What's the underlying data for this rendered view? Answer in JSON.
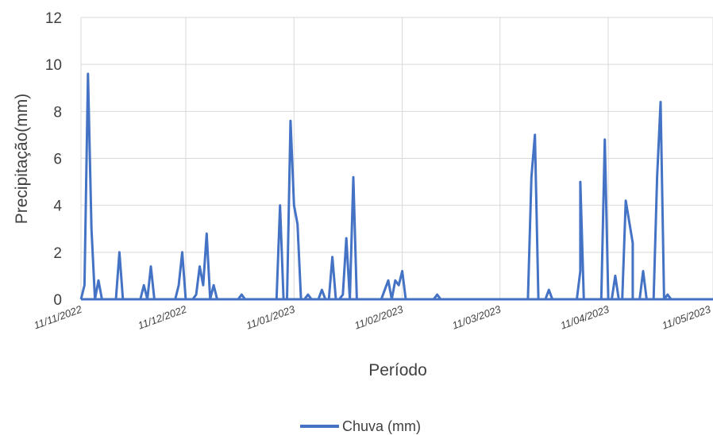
{
  "chart_data": {
    "type": "line",
    "xlabel": "Período",
    "ylabel": "Precipitação(mm)",
    "ylim": [
      0,
      12
    ],
    "yticks": [
      "0",
      "2",
      "4",
      "6",
      "8",
      "10",
      "12"
    ],
    "xticks": [
      {
        "label": "11/11/2022",
        "date": "2022-11-11"
      },
      {
        "label": "11/12/2022",
        "date": "2022-12-11"
      },
      {
        "label": "11/01/2023",
        "date": "2023-01-11"
      },
      {
        "label": "11/02/2023",
        "date": "2023-02-11"
      },
      {
        "label": "11/03/2023",
        "date": "2023-03-11"
      },
      {
        "label": "11/04/2023",
        "date": "2023-04-11"
      },
      {
        "label": "11/05/2023",
        "date": "2023-05-11"
      }
    ],
    "xlim": [
      "2022-11-11",
      "2023-05-11"
    ],
    "grid": true,
    "legend_position": "bottom",
    "series": [
      {
        "name": "Chuva (mm)",
        "color": "#4472c4",
        "points": [
          [
            "2022-11-11",
            0
          ],
          [
            "2022-11-12",
            0.6
          ],
          [
            "2022-11-13",
            9.6
          ],
          [
            "2022-11-14",
            3.0
          ],
          [
            "2022-11-15",
            0
          ],
          [
            "2022-11-16",
            0.8
          ],
          [
            "2022-11-17",
            0
          ],
          [
            "2022-11-17",
            0
          ],
          [
            "2022-11-18",
            0
          ],
          [
            "2022-11-19",
            0
          ],
          [
            "2022-11-20",
            0
          ],
          [
            "2022-11-21",
            0
          ],
          [
            "2022-11-17",
            0
          ],
          [
            "2022-11-18",
            0
          ],
          [
            "2022-11-17",
            0
          ],
          [
            "2022-11-20",
            0
          ],
          [
            "2022-11-21",
            0
          ],
          [
            "2022-11-17",
            0
          ],
          [
            "2022-11-18",
            0
          ],
          [
            "2022-11-20",
            0
          ],
          [
            "2022-11-21",
            0
          ],
          [
            "2022-11-17",
            0
          ],
          [
            "2022-11-20",
            0
          ],
          [
            "2022-11-21",
            0
          ],
          [
            "2022-11-17",
            0
          ],
          [
            "2022-11-21",
            0
          ],
          [
            "2022-11-22",
            0
          ],
          [
            "2022-11-17",
            0
          ],
          [
            "2022-11-17",
            0
          ],
          [
            "2022-11-18",
            0
          ],
          [
            "2022-11-19",
            0
          ],
          [
            "2022-11-20",
            0
          ],
          [
            "2022-11-21",
            0
          ],
          [
            "2022-11-22",
            0
          ],
          [
            "2022-11-17",
            0
          ],
          [
            "2022-11-18",
            0
          ],
          [
            "2022-11-19",
            0
          ],
          [
            "2022-11-20",
            0
          ],
          [
            "2022-11-21",
            0
          ],
          [
            "2022-11-22",
            2.0
          ],
          [
            "2022-11-23",
            0
          ],
          [
            "2022-11-28",
            0
          ],
          [
            "2022-11-29",
            0.6
          ],
          [
            "2022-11-30",
            0
          ],
          [
            "2022-12-01",
            1.4
          ],
          [
            "2022-12-02",
            0
          ],
          [
            "2022-12-08",
            0
          ],
          [
            "2022-12-09",
            0.6
          ],
          [
            "2022-12-10",
            2.0
          ],
          [
            "2022-12-11",
            0
          ],
          [
            "2022-12-13",
            0
          ],
          [
            "2022-12-14",
            0.2
          ],
          [
            "2022-12-15",
            1.4
          ],
          [
            "2022-12-16",
            0.6
          ],
          [
            "2022-12-17",
            2.8
          ],
          [
            "2022-12-18",
            0
          ],
          [
            "2022-12-19",
            0.6
          ],
          [
            "2022-12-20",
            0
          ],
          [
            "2022-12-26",
            0
          ],
          [
            "2022-12-27",
            0.2
          ],
          [
            "2022-12-28",
            0
          ],
          [
            "2023-01-06",
            0
          ],
          [
            "2023-01-07",
            4.0
          ],
          [
            "2023-01-08",
            0
          ],
          [
            "2023-01-09",
            0
          ],
          [
            "2023-01-10",
            7.6
          ],
          [
            "2023-01-11",
            4.0
          ],
          [
            "2023-01-12",
            3.2
          ],
          [
            "2023-01-13",
            0
          ],
          [
            "2023-01-14",
            0
          ],
          [
            "2023-01-15",
            0.2
          ],
          [
            "2023-01-16",
            0
          ],
          [
            "2023-01-18",
            0
          ],
          [
            "2023-01-19",
            0.4
          ],
          [
            "2023-01-20",
            0
          ],
          [
            "2023-01-21",
            0
          ],
          [
            "2023-01-22",
            1.8
          ],
          [
            "2023-01-23",
            0
          ],
          [
            "2023-01-24",
            0
          ],
          [
            "2023-01-25",
            0.2
          ],
          [
            "2023-01-26",
            2.6
          ],
          [
            "2023-01-27",
            0
          ],
          [
            "2023-01-28",
            5.2
          ],
          [
            "2023-01-29",
            0
          ],
          [
            "2023-02-05",
            0
          ],
          [
            "2023-02-06",
            0.4
          ],
          [
            "2023-02-07",
            0.8
          ],
          [
            "2023-02-08",
            0
          ],
          [
            "2023-02-09",
            0.8
          ],
          [
            "2023-02-10",
            0.6
          ],
          [
            "2023-02-11",
            1.2
          ],
          [
            "2023-02-12",
            0
          ],
          [
            "2023-02-20",
            0
          ],
          [
            "2023-02-21",
            0.2
          ],
          [
            "2023-02-22",
            0
          ],
          [
            "2023-03-19",
            0
          ],
          [
            "2023-03-20",
            5.2
          ],
          [
            "2023-03-21",
            7.0
          ],
          [
            "2023-03-22",
            0
          ],
          [
            "2023-03-24",
            0
          ],
          [
            "2023-03-25",
            0.4
          ],
          [
            "2023-03-26",
            0
          ],
          [
            "2023-04-02",
            0
          ],
          [
            "2023-04-03",
            1.2
          ],
          [
            "2023-04-03",
            5.0
          ],
          [
            "2023-04-04",
            0
          ],
          [
            "2023-04-09",
            0
          ],
          [
            "2023-04-10",
            6.8
          ],
          [
            "2023-04-11",
            0
          ],
          [
            "2023-04-12",
            0
          ],
          [
            "2023-04-13",
            1.0
          ],
          [
            "2023-04-14",
            0
          ],
          [
            "2023-04-15",
            0
          ],
          [
            "2023-04-16",
            4.2
          ],
          [
            "2023-04-18",
            2.4
          ],
          [
            "2023-04-18",
            0
          ],
          [
            "2023-04-20",
            0
          ],
          [
            "2023-04-21",
            1.2
          ],
          [
            "2023-04-22",
            0
          ],
          [
            "2023-04-24",
            0
          ],
          [
            "2023-04-25",
            5.2
          ],
          [
            "2023-04-26",
            8.4
          ],
          [
            "2023-04-27",
            0
          ],
          [
            "2023-04-28",
            0.2
          ],
          [
            "2023-04-29",
            0
          ]
        ]
      }
    ]
  }
}
